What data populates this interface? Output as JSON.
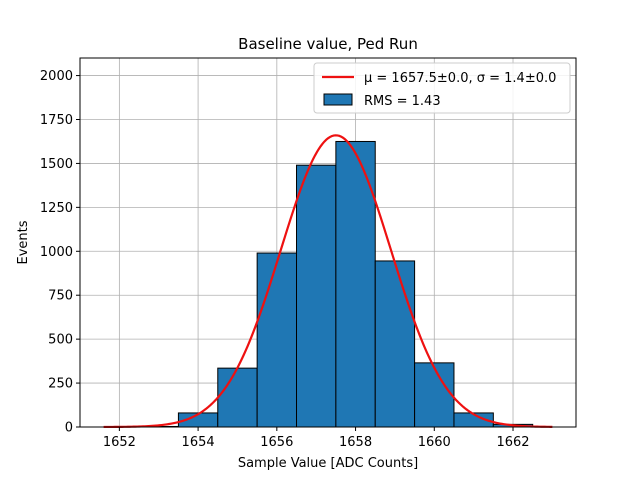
{
  "chart_data": {
    "type": "bar",
    "title": "Baseline value, Ped Run",
    "xlabel": "Sample Value [ADC Counts]",
    "ylabel": "Events",
    "xlim": [
      1651,
      1663.6
    ],
    "ylim": [
      0,
      2100
    ],
    "xticks": [
      1652,
      1654,
      1656,
      1658,
      1660,
      1662
    ],
    "yticks": [
      0,
      250,
      500,
      750,
      1000,
      1250,
      1500,
      1750,
      2000
    ],
    "grid": true,
    "legend_position": "top-right",
    "bin_width": 1,
    "bins": [
      {
        "center": 1652,
        "value": 0
      },
      {
        "center": 1653,
        "value": 3
      },
      {
        "center": 1654,
        "value": 80
      },
      {
        "center": 1655,
        "value": 335
      },
      {
        "center": 1656,
        "value": 990
      },
      {
        "center": 1657,
        "value": 1490
      },
      {
        "center": 1658,
        "value": 1625
      },
      {
        "center": 1659,
        "value": 945
      },
      {
        "center": 1660,
        "value": 365
      },
      {
        "center": 1661,
        "value": 80
      },
      {
        "center": 1662,
        "value": 15
      }
    ],
    "fit": {
      "mu": 1657.5,
      "sigma": 1.4,
      "amplitude": 1660,
      "x_range": [
        1651.6,
        1663.0
      ],
      "color": "#ee1111"
    },
    "series": [
      {
        "name": "μ = 1657.5±0.0, σ = 1.4±0.0",
        "kind": "line",
        "color": "#ee1111"
      },
      {
        "name": "RMS = 1.43",
        "kind": "bar",
        "color": "#1f77b4"
      }
    ]
  }
}
